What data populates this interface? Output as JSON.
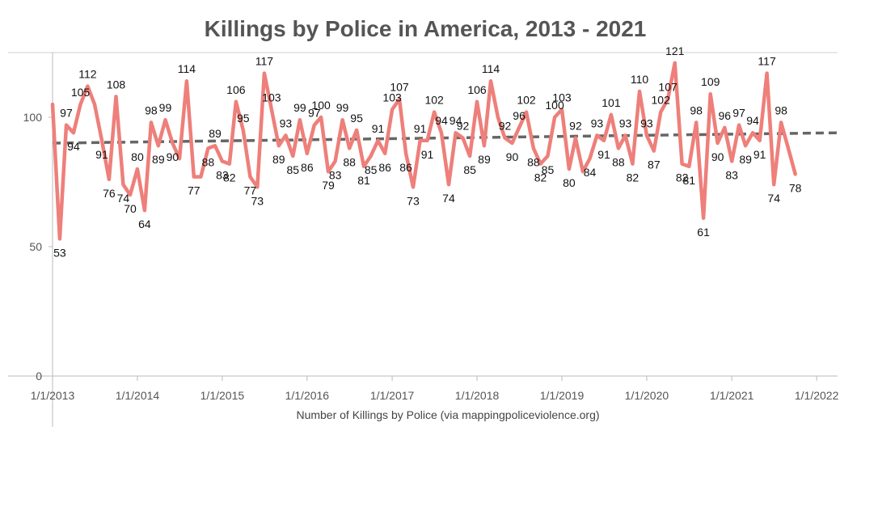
{
  "chart_data": {
    "type": "line",
    "title": "Killings by Police in America, 2013 - 2021",
    "xlabel": "Number of Killings by Police (via mappingpoliceviolence.org)",
    "ylabel": "",
    "ylim": [
      0,
      125
    ],
    "yticks": [
      0,
      50,
      100
    ],
    "x_range": [
      "2013-01-01",
      "2022-04-01"
    ],
    "x_ticks": [
      {
        "date": "2013-01-01",
        "label": "1/1/2013"
      },
      {
        "date": "2014-01-01",
        "label": "1/1/2014"
      },
      {
        "date": "2015-01-01",
        "label": "1/1/2015"
      },
      {
        "date": "2016-01-01",
        "label": "1/1/2016"
      },
      {
        "date": "2017-01-01",
        "label": "1/1/2017"
      },
      {
        "date": "2018-01-01",
        "label": "1/1/2018"
      },
      {
        "date": "2019-01-01",
        "label": "1/1/2019"
      },
      {
        "date": "2020-01-01",
        "label": "1/1/2020"
      },
      {
        "date": "2021-01-01",
        "label": "1/1/2021"
      },
      {
        "date": "2022-01-01",
        "label": "1/1/2022"
      }
    ],
    "grid": false,
    "series": [
      {
        "color": "#ee7f7a",
        "points": [
          [
            "2013-01",
            105
          ],
          [
            "2013-02",
            53
          ],
          [
            "2013-03",
            97
          ],
          [
            "2013-04",
            94
          ],
          [
            "2013-05",
            105
          ],
          [
            "2013-06",
            112
          ],
          [
            "2013-07",
            105
          ],
          [
            "2013-08",
            91
          ],
          [
            "2013-09",
            76
          ],
          [
            "2013-10",
            108
          ],
          [
            "2013-11",
            74
          ],
          [
            "2013-12",
            70
          ],
          [
            "2014-01",
            80
          ],
          [
            "2014-02",
            64
          ],
          [
            "2014-03",
            98
          ],
          [
            "2014-04",
            89
          ],
          [
            "2014-05",
            99
          ],
          [
            "2014-06",
            90
          ],
          [
            "2014-07",
            84
          ],
          [
            "2014-08",
            114
          ],
          [
            "2014-09",
            77
          ],
          [
            "2014-10",
            77
          ],
          [
            "2014-11",
            88
          ],
          [
            "2014-12",
            89
          ],
          [
            "2015-01",
            83
          ],
          [
            "2015-02",
            82
          ],
          [
            "2015-03",
            106
          ],
          [
            "2015-04",
            95
          ],
          [
            "2015-05",
            77
          ],
          [
            "2015-06",
            73
          ],
          [
            "2015-07",
            117
          ],
          [
            "2015-08",
            103
          ],
          [
            "2015-09",
            89
          ],
          [
            "2015-10",
            93
          ],
          [
            "2015-11",
            85
          ],
          [
            "2015-12",
            99
          ],
          [
            "2016-01",
            86
          ],
          [
            "2016-02",
            97
          ],
          [
            "2016-03",
            100
          ],
          [
            "2016-04",
            79
          ],
          [
            "2016-05",
            83
          ],
          [
            "2016-06",
            99
          ],
          [
            "2016-07",
            88
          ],
          [
            "2016-08",
            95
          ],
          [
            "2016-09",
            81
          ],
          [
            "2016-10",
            85
          ],
          [
            "2016-11",
            91
          ],
          [
            "2016-12",
            86
          ],
          [
            "2017-01",
            103
          ],
          [
            "2017-02",
            107
          ],
          [
            "2017-03",
            86
          ],
          [
            "2017-04",
            73
          ],
          [
            "2017-05",
            91
          ],
          [
            "2017-06",
            91
          ],
          [
            "2017-07",
            102
          ],
          [
            "2017-08",
            94
          ],
          [
            "2017-09",
            74
          ],
          [
            "2017-10",
            94
          ],
          [
            "2017-11",
            92
          ],
          [
            "2017-12",
            85
          ],
          [
            "2018-01",
            106
          ],
          [
            "2018-02",
            89
          ],
          [
            "2018-03",
            114
          ],
          [
            "2018-04",
            100
          ],
          [
            "2018-05",
            92
          ],
          [
            "2018-06",
            90
          ],
          [
            "2018-07",
            96
          ],
          [
            "2018-08",
            102
          ],
          [
            "2018-09",
            88
          ],
          [
            "2018-10",
            82
          ],
          [
            "2018-11",
            85
          ],
          [
            "2018-12",
            100
          ],
          [
            "2019-01",
            103
          ],
          [
            "2019-02",
            80
          ],
          [
            "2019-03",
            92
          ],
          [
            "2019-04",
            79
          ],
          [
            "2019-05",
            84
          ],
          [
            "2019-06",
            93
          ],
          [
            "2019-07",
            91
          ],
          [
            "2019-08",
            101
          ],
          [
            "2019-09",
            88
          ],
          [
            "2019-10",
            93
          ],
          [
            "2019-11",
            82
          ],
          [
            "2019-12",
            110
          ],
          [
            "2020-01",
            93
          ],
          [
            "2020-02",
            87
          ],
          [
            "2020-03",
            102
          ],
          [
            "2020-04",
            107
          ],
          [
            "2020-05",
            121
          ],
          [
            "2020-06",
            82
          ],
          [
            "2020-07",
            81
          ],
          [
            "2020-08",
            98
          ],
          [
            "2020-09",
            61
          ],
          [
            "2020-10",
            109
          ],
          [
            "2020-11",
            90
          ],
          [
            "2020-12",
            96
          ],
          [
            "2021-01",
            83
          ],
          [
            "2021-02",
            97
          ],
          [
            "2021-03",
            89
          ],
          [
            "2021-04",
            94
          ],
          [
            "2021-05",
            91
          ],
          [
            "2021-06",
            117
          ],
          [
            "2021-07",
            74
          ],
          [
            "2021-08",
            98
          ],
          [
            "2021-09",
            88
          ],
          [
            "2021-10",
            78
          ]
        ]
      }
    ],
    "labeled_points": [
      "2013-02",
      "2013-03",
      "2013-04",
      "2013-05",
      "2013-06",
      "2013-08",
      "2013-09",
      "2013-10",
      "2013-11",
      "2013-12",
      "2014-01",
      "2014-02",
      "2014-03",
      "2014-04",
      "2014-05",
      "2014-06",
      "2014-08",
      "2014-09",
      "2014-11",
      "2014-12",
      "2015-01",
      "2015-02",
      "2015-03",
      "2015-04",
      "2015-05",
      "2015-06",
      "2015-07",
      "2015-08",
      "2015-09",
      "2015-10",
      "2015-11",
      "2015-12",
      "2016-01",
      "2016-02",
      "2016-03",
      "2016-04",
      "2016-05",
      "2016-06",
      "2016-07",
      "2016-08",
      "2016-09",
      "2016-10",
      "2016-11",
      "2016-12",
      "2017-01",
      "2017-02",
      "2017-03",
      "2017-04",
      "2017-05",
      "2017-06",
      "2017-07",
      "2017-08",
      "2017-09",
      "2017-10",
      "2017-11",
      "2017-12",
      "2018-01",
      "2018-02",
      "2018-03",
      "2018-05",
      "2018-06",
      "2018-07",
      "2018-08",
      "2018-09",
      "2018-10",
      "2018-11",
      "2018-12",
      "2019-01",
      "2019-02",
      "2019-03",
      "2019-05",
      "2019-06",
      "2019-07",
      "2019-08",
      "2019-09",
      "2019-10",
      "2019-11",
      "2019-12",
      "2020-01",
      "2020-02",
      "2020-03",
      "2020-04",
      "2020-05",
      "2020-06",
      "2020-07",
      "2020-08",
      "2020-09",
      "2020-10",
      "2020-11",
      "2020-12",
      "2021-01",
      "2021-02",
      "2021-03",
      "2021-04",
      "2021-05",
      "2021-06",
      "2021-07",
      "2021-08",
      "2021-10"
    ],
    "trendline": {
      "style": "dashed",
      "color": "#666666",
      "from": [
        "2013-01-01",
        90
      ],
      "to": [
        "2022-04-01",
        94
      ]
    }
  }
}
